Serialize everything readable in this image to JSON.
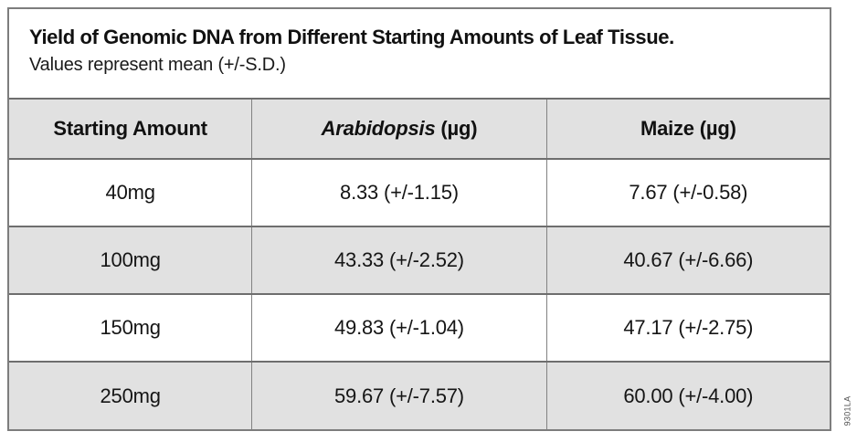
{
  "figure": {
    "title": "Yield of Genomic DNA from Different Starting Amounts of Leaf Tissue.",
    "subtitle": "Values represent mean (+/-S.D.)",
    "code": "9301LA"
  },
  "table": {
    "header": {
      "starting_amount": "Starting Amount",
      "arabidopsis_italic": "Arabidopsis",
      "arabidopsis_unit": "(µg)",
      "maize": "Maize (µg)"
    },
    "rows": [
      {
        "starting_amount": "40mg",
        "arabidopsis": "8.33 (+/-1.15)",
        "maize": "7.67 (+/-0.58)"
      },
      {
        "starting_amount": "100mg",
        "arabidopsis": "43.33 (+/-2.52)",
        "maize": "40.67 (+/-6.66)"
      },
      {
        "starting_amount": "150mg",
        "arabidopsis": "49.83 (+/-1.04)",
        "maize": "47.17 (+/-2.75)"
      },
      {
        "starting_amount": "250mg",
        "arabidopsis": "59.67 (+/-7.57)",
        "maize": "60.00 (+/-4.00)"
      }
    ]
  },
  "colors": {
    "header_background": "#e1e1e1",
    "stripe_background": "#e1e1e1",
    "row_background": "#ffffff",
    "border": "#7d7d7d",
    "text": "#111111"
  },
  "chart_data": {
    "type": "table",
    "title": "Yield of Genomic DNA from Different Starting Amounts of Leaf Tissue.",
    "subtitle": "Values represent mean (+/-S.D.)",
    "columns": [
      "Starting Amount",
      "Arabidopsis (µg)",
      "Maize (µg)"
    ],
    "categories": [
      "40mg",
      "100mg",
      "150mg",
      "250mg"
    ],
    "rows": [
      [
        "40mg",
        "8.33 (+/-1.15)",
        "7.67 (+/-0.58)"
      ],
      [
        "100mg",
        "43.33 (+/-2.52)",
        "40.67 (+/-6.66)"
      ],
      [
        "150mg",
        "49.83 (+/-1.04)",
        "47.17 (+/-2.75)"
      ],
      [
        "250mg",
        "59.67 (+/-7.57)",
        "60.00 (+/-4.00)"
      ]
    ],
    "series": [
      {
        "name": "Arabidopsis (µg)",
        "mean": [
          8.33,
          43.33,
          49.83,
          59.67
        ],
        "sd": [
          1.15,
          2.52,
          1.04,
          7.57
        ]
      },
      {
        "name": "Maize (µg)",
        "mean": [
          7.67,
          40.67,
          47.17,
          60.0
        ],
        "sd": [
          0.58,
          6.66,
          2.75,
          4.0
        ]
      }
    ]
  }
}
